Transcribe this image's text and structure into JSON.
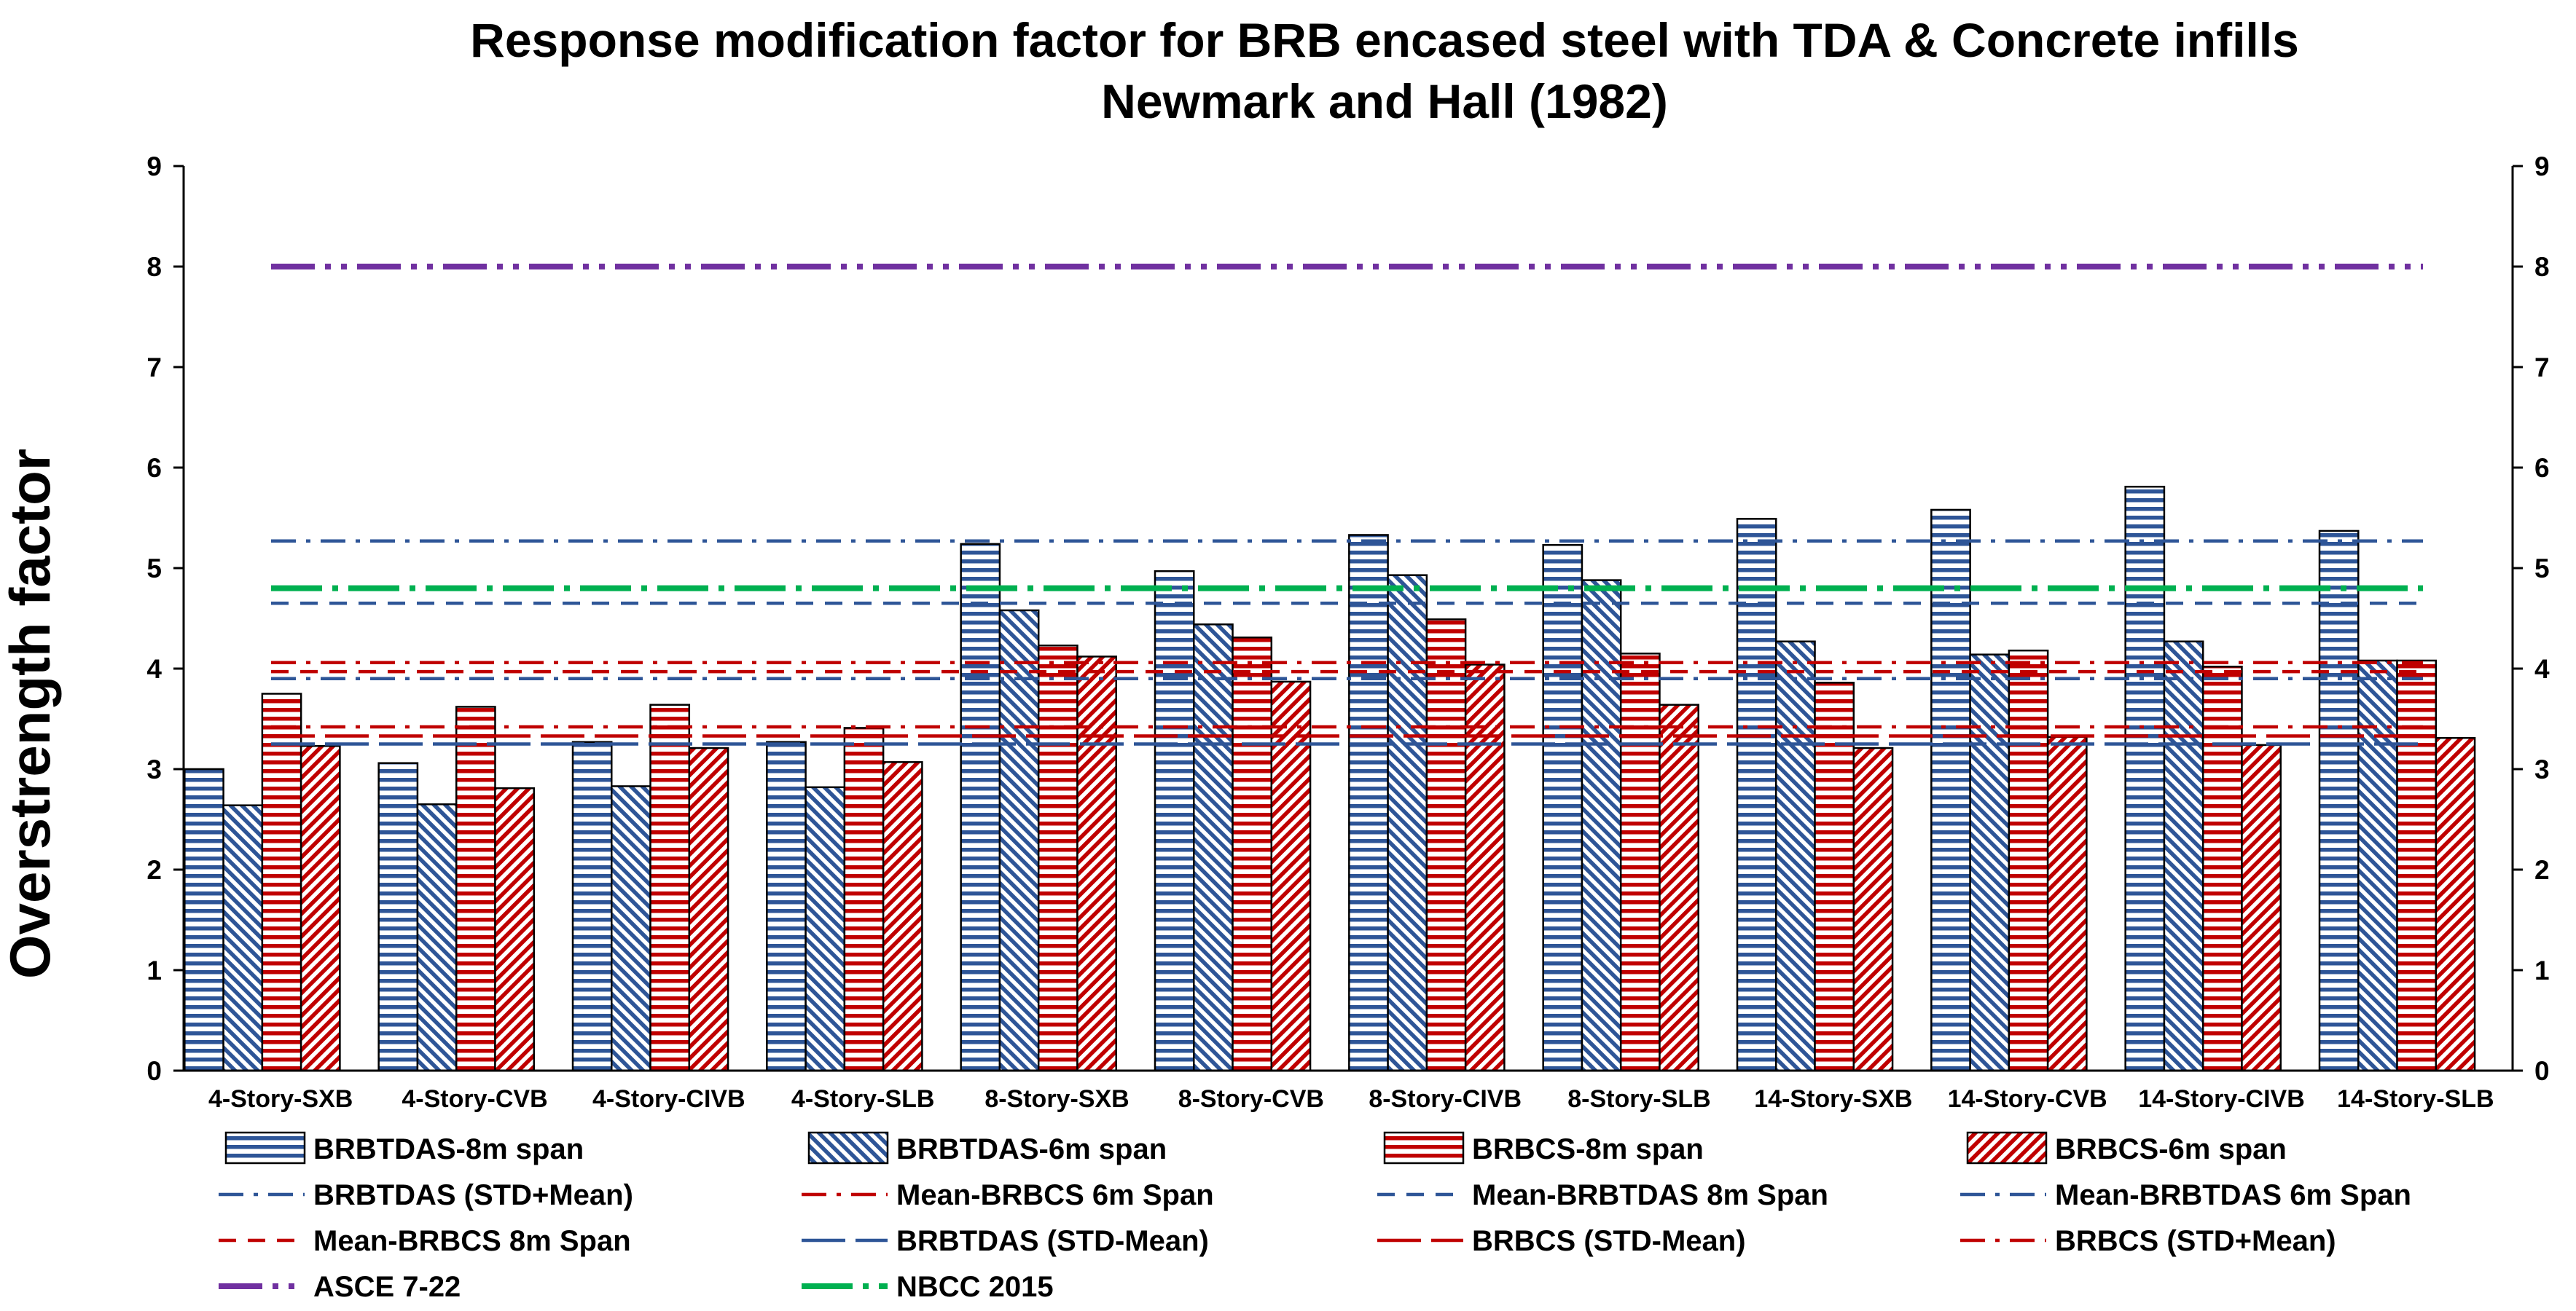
{
  "chart_data": {
    "type": "bar",
    "title": "Response modification factor for BRB encased steel with TDA & Concrete infills",
    "subtitle": "Newmark and Hall (1982)",
    "xlabel": "",
    "ylabel": "Overstrength factor",
    "ylim": [
      0,
      9
    ],
    "yticks": [
      0,
      1,
      2,
      3,
      4,
      5,
      6,
      7,
      8,
      9
    ],
    "secondary_y_axis": true,
    "categories": [
      "4-Story-SXB",
      "4-Story-CVB",
      "4-Story-CIVB",
      "4-Story-SLB",
      "8-Story-SXB",
      "8-Story-CVB",
      "8-Story-CIVB",
      "8-Story-SLB",
      "14-Story-SXB",
      "14-Story-CVB",
      "14-Story-CIVB",
      "14-Story-SLB"
    ],
    "series": [
      {
        "name": "BRBTDAS-8m span",
        "color": "#2e5597",
        "pattern": "horizontal",
        "values": [
          3.0,
          3.06,
          3.27,
          3.27,
          5.24,
          4.97,
          5.33,
          5.23,
          5.49,
          5.58,
          5.81,
          5.37
        ]
      },
      {
        "name": "BRBTDAS-6m span",
        "color": "#2e5597",
        "pattern": "diagonal",
        "values": [
          2.64,
          2.65,
          2.83,
          2.82,
          4.58,
          4.44,
          4.93,
          4.88,
          4.27,
          4.14,
          4.27,
          4.08
        ]
      },
      {
        "name": "BRBCS-8m span",
        "color": "#c00000",
        "pattern": "horizontal",
        "values": [
          3.75,
          3.62,
          3.64,
          3.41,
          4.23,
          4.31,
          4.49,
          4.15,
          3.86,
          4.18,
          4.02,
          4.08
        ]
      },
      {
        "name": "BRBCS-6m span",
        "color": "#c00000",
        "pattern": "diagonal",
        "values": [
          3.23,
          2.81,
          3.21,
          3.07,
          4.12,
          3.87,
          4.04,
          3.64,
          3.21,
          3.32,
          3.24,
          3.31
        ]
      }
    ],
    "reference_lines": [
      {
        "name": "BRBTDAS (STD+Mean)",
        "value": 5.27,
        "color": "#2e5597",
        "style": "dash-dot"
      },
      {
        "name": "Mean-BRBCS 6m Span",
        "value": 3.42,
        "color": "#c00000",
        "style": "dash-dot"
      },
      {
        "name": "Mean-BRBTDAS 8m Span",
        "value": 4.65,
        "color": "#2e5597",
        "style": "dash"
      },
      {
        "name": "Mean-BRBTDAS 6m Span",
        "value": 3.9,
        "color": "#2e5597",
        "style": "dash-dot"
      },
      {
        "name": "Mean-BRBCS 8m Span",
        "value": 3.97,
        "color": "#c00000",
        "style": "dash"
      },
      {
        "name": "BRBTDAS (STD-Mean)",
        "value": 3.25,
        "color": "#2e5597",
        "style": "long-dash"
      },
      {
        "name": "BRBCS (STD-Mean)",
        "value": 3.33,
        "color": "#c00000",
        "style": "long-dash"
      },
      {
        "name": "BRBCS (STD+Mean)",
        "value": 4.06,
        "color": "#c00000",
        "style": "dash-dot"
      },
      {
        "name": "ASCE 7-22",
        "value": 8.0,
        "color": "#7030a0",
        "style": "long-dash-dot-dot"
      },
      {
        "name": "NBCC 2015",
        "value": 4.8,
        "color": "#00b050",
        "style": "long-dash-dot"
      }
    ],
    "legend_position": "bottom"
  }
}
